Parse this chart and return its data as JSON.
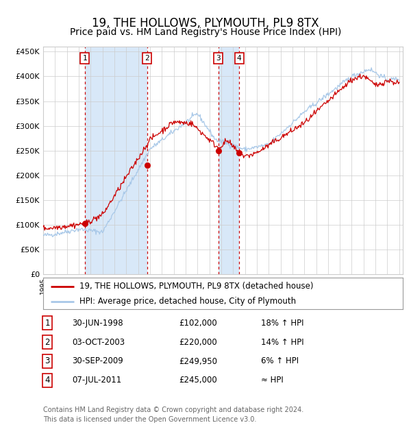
{
  "title": "19, THE HOLLOWS, PLYMOUTH, PL9 8TX",
  "subtitle": "Price paid vs. HM Land Registry's House Price Index (HPI)",
  "title_fontsize": 12,
  "subtitle_fontsize": 10,
  "bg_color": "#ffffff",
  "plot_bg_color": "#ffffff",
  "grid_color": "#cccccc",
  "hpi_line_color": "#a8c8e8",
  "price_line_color": "#cc0000",
  "sale_marker_color": "#cc0000",
  "dashed_line_color": "#cc0000",
  "shade_color": "#d8e8f8",
  "ylim": [
    0,
    460000
  ],
  "yticks": [
    0,
    50000,
    100000,
    150000,
    200000,
    250000,
    300000,
    350000,
    400000,
    450000
  ],
  "sale_dates": [
    1998.5,
    2003.75,
    2009.75,
    2011.52
  ],
  "sale_prices": [
    102000,
    220000,
    249950,
    245000
  ],
  "sale_labels": [
    "1",
    "2",
    "3",
    "4"
  ],
  "legend_entries": [
    "19, THE HOLLOWS, PLYMOUTH, PL9 8TX (detached house)",
    "HPI: Average price, detached house, City of Plymouth"
  ],
  "table_rows": [
    [
      "1",
      "30-JUN-1998",
      "£102,000",
      "18% ↑ HPI"
    ],
    [
      "2",
      "03-OCT-2003",
      "£220,000",
      "14% ↑ HPI"
    ],
    [
      "3",
      "30-SEP-2009",
      "£249,950",
      "6% ↑ HPI"
    ],
    [
      "4",
      "07-JUL-2011",
      "£245,000",
      "≈ HPI"
    ]
  ],
  "footnote": "Contains HM Land Registry data © Crown copyright and database right 2024.\nThis data is licensed under the Open Government Licence v3.0.",
  "footnote_fontsize": 7
}
